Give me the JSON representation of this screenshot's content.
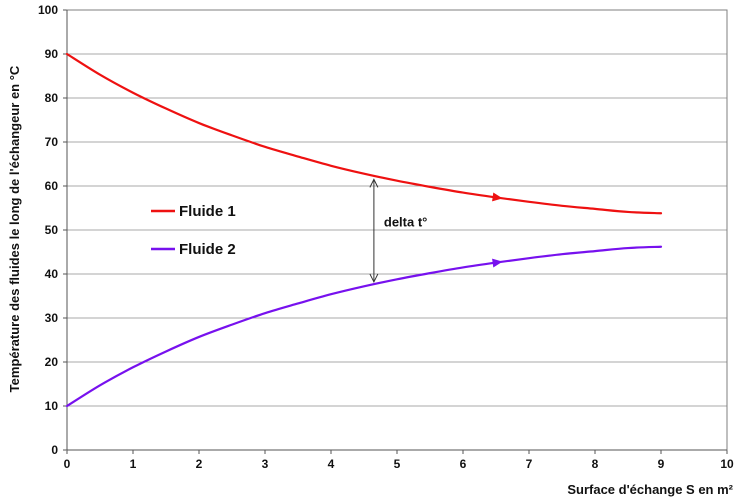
{
  "chart_data": {
    "type": "line",
    "title": "",
    "xlabel": "Surface d'échange S en m²",
    "ylabel": "Température des fluides le long de l'échangeur en °C",
    "xlim": [
      0,
      10
    ],
    "ylim": [
      0,
      100
    ],
    "x_ticks": [
      "0",
      "1",
      "2",
      "3",
      "4",
      "5",
      "6",
      "7",
      "8",
      "9",
      "10"
    ],
    "y_ticks": [
      "0",
      "10",
      "20",
      "30",
      "40",
      "50",
      "60",
      "70",
      "80",
      "90",
      "100"
    ],
    "grid": "horizontal",
    "legend_position": "left-center",
    "series": [
      {
        "name": "Fluide 1",
        "color": "#ee1111",
        "x": [
          0,
          0.5,
          1,
          1.5,
          2,
          2.5,
          3,
          3.5,
          4,
          4.5,
          5,
          5.5,
          6,
          6.5,
          7,
          7.5,
          8,
          8.5,
          9
        ],
        "y": [
          90,
          85.3,
          81.2,
          77.6,
          74.3,
          71.5,
          68.9,
          66.7,
          64.6,
          62.8,
          61.2,
          59.8,
          58.5,
          57.4,
          56.4,
          55.5,
          54.8,
          54.1,
          53.8
        ]
      },
      {
        "name": "Fluide 2",
        "color": "#7711ee",
        "x": [
          0,
          0.5,
          1,
          1.5,
          2,
          2.5,
          3,
          3.5,
          4,
          4.5,
          5,
          5.5,
          6,
          6.5,
          7,
          7.5,
          8,
          8.5,
          9
        ],
        "y": [
          10,
          14.7,
          18.8,
          22.4,
          25.7,
          28.5,
          31.1,
          33.3,
          35.4,
          37.2,
          38.8,
          40.2,
          41.5,
          42.6,
          43.6,
          44.5,
          45.2,
          45.9,
          46.2
        ]
      }
    ],
    "annotations": [
      {
        "text": "delta t°",
        "x": 4.65,
        "y_from": 61.5,
        "y_to": 38.2
      }
    ],
    "direction_arrows": [
      {
        "series": "Fluide 1",
        "x": 6.6
      },
      {
        "series": "Fluide 2",
        "x": 6.6
      }
    ]
  }
}
